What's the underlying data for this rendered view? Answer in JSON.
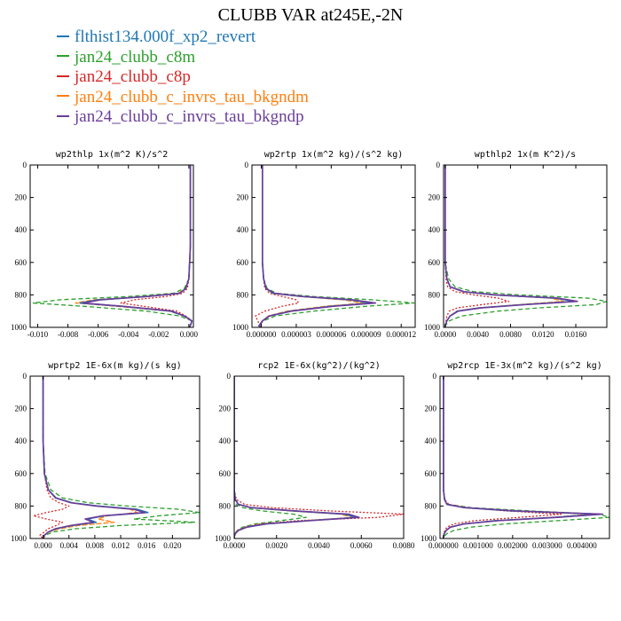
{
  "title": "CLUBB VAR at245E,-2N",
  "legend": [
    {
      "name": "flthist134.000f_xp2_revert",
      "color": "#1f77b4"
    },
    {
      "name": "jan24_clubb_c8m",
      "color": "#2ca02c"
    },
    {
      "name": "jan24_clubb_c8p",
      "color": "#d62728"
    },
    {
      "name": "jan24_clubb_c_invrs_tau_bkgndm",
      "color": "#ff7f0e"
    },
    {
      "name": "jan24_clubb_c_invrs_tau_bkgndp",
      "color": "#6a3d9a"
    }
  ],
  "chart_data": [
    {
      "type": "line",
      "title": "wp2thlp  1x(m^2 K)/s^2",
      "xlim": [
        -0.0105,
        0.0003
      ],
      "ylim": [
        1000,
        0
      ],
      "y_reversed": true,
      "xticks": [
        -0.01,
        -0.008,
        -0.006,
        -0.004,
        -0.002,
        0.0
      ],
      "xtick_labels": [
        "-0.010",
        "-0.008",
        "-0.006",
        "-0.004",
        "-0.002",
        "0.000"
      ],
      "yticks": [
        0,
        200,
        400,
        600,
        800,
        1000
      ],
      "y": [
        0,
        100,
        300,
        500,
        700,
        760,
        790,
        810,
        830,
        850,
        870,
        900,
        930,
        960,
        990,
        1000
      ],
      "series": [
        {
          "name": "flthist134.000f_xp2_revert",
          "x": [
            0.0001,
            0.0001,
            0.0001,
            0.0001,
            0,
            -0.0002,
            -0.0006,
            -0.0028,
            -0.006,
            -0.0072,
            -0.0045,
            -0.0012,
            -0.0003,
            0.0002,
            0.0001,
            0
          ]
        },
        {
          "name": "jan24_clubb_c8m",
          "x": [
            0.0001,
            0.0001,
            0.0001,
            0.0001,
            0,
            -0.0003,
            -0.001,
            -0.004,
            -0.0085,
            -0.0103,
            -0.007,
            -0.0028,
            -0.0006,
            0.0002,
            0.0001,
            0
          ]
        },
        {
          "name": "jan24_clubb_c8p",
          "x": [
            0.0001,
            0.0001,
            0.0001,
            0.0001,
            0,
            -0.0001,
            -0.0004,
            -0.0015,
            -0.0036,
            -0.0045,
            -0.003,
            -0.0008,
            -0.0002,
            0.0002,
            0.0001,
            0
          ]
        },
        {
          "name": "jan24_clubb_c_invrs_tau_bkgndm",
          "x": [
            0.0001,
            0.0001,
            0.0001,
            0.0001,
            0,
            -0.0002,
            -0.0007,
            -0.003,
            -0.0063,
            -0.0075,
            -0.0048,
            -0.0013,
            -0.0003,
            0.0002,
            0.0001,
            0
          ]
        },
        {
          "name": "jan24_clubb_c_invrs_tau_bkgndp",
          "x": [
            0.0001,
            0.0001,
            0.0001,
            0.0001,
            0,
            -0.0002,
            -0.0006,
            -0.0027,
            -0.0058,
            -0.007,
            -0.0044,
            -0.0011,
            -0.0003,
            0.0002,
            0.0001,
            0
          ]
        }
      ]
    },
    {
      "type": "line",
      "title": "wp2rtp  1x(m^2 kg)/(s^2 kg)",
      "xlim": [
        -8e-07,
        1.32e-05
      ],
      "ylim": [
        1000,
        0
      ],
      "y_reversed": true,
      "xticks": [
        0.0,
        3e-06,
        6e-06,
        9e-06,
        1.2e-05
      ],
      "xtick_labels": [
        "0.000000",
        "0.000003",
        "0.000006",
        "0.000009",
        "0.000012"
      ],
      "yticks": [
        0,
        200,
        400,
        600,
        800,
        1000
      ],
      "y": [
        0,
        200,
        400,
        600,
        700,
        760,
        790,
        810,
        830,
        850,
        870,
        900,
        930,
        960,
        990,
        1000
      ],
      "series": [
        {
          "name": "flthist134.000f_xp2_revert",
          "x": [
            1e-07,
            1e-07,
            1e-07,
            1e-07,
            2e-07,
            4e-07,
            1e-06,
            3.5e-06,
            7.5e-06,
            9.5e-06,
            6e-06,
            2.5e-06,
            7e-07,
            1e-07,
            -2e-07,
            0
          ]
        },
        {
          "name": "jan24_clubb_c8m",
          "x": [
            1e-07,
            1e-07,
            1e-07,
            1e-07,
            2e-07,
            5e-07,
            1.3e-06,
            4.5e-06,
            9.5e-06,
            1.31e-05,
            9e-06,
            4.5e-06,
            1.2e-06,
            2e-07,
            -2e-07,
            0
          ]
        },
        {
          "name": "jan24_clubb_c8p",
          "x": [
            1e-07,
            1e-07,
            1e-07,
            1e-07,
            2e-07,
            3e-07,
            7e-07,
            1.8e-06,
            3e-06,
            3.2e-06,
            1.8e-06,
            3e-07,
            -5e-07,
            -3e-07,
            -1e-07,
            0
          ]
        },
        {
          "name": "jan24_clubb_c_invrs_tau_bkgndm",
          "x": [
            1e-07,
            1e-07,
            1e-07,
            1e-07,
            2e-07,
            4e-07,
            1e-06,
            3.3e-06,
            7e-06,
            8.8e-06,
            5.5e-06,
            2.2e-06,
            6e-07,
            1e-07,
            -2e-07,
            0
          ]
        },
        {
          "name": "jan24_clubb_c_invrs_tau_bkgndp",
          "x": [
            1e-07,
            1e-07,
            1e-07,
            1e-07,
            2e-07,
            4e-07,
            1.1e-06,
            3.6e-06,
            7.8e-06,
            9.8e-06,
            6.2e-06,
            2.6e-06,
            7e-07,
            1e-07,
            -2e-07,
            0
          ]
        }
      ]
    },
    {
      "type": "line",
      "title": "wpthlp2  1x(m K^2)/s",
      "xlim": [
        -0.0002,
        0.0198
      ],
      "ylim": [
        1000,
        0
      ],
      "y_reversed": true,
      "xticks": [
        0.0,
        0.004,
        0.008,
        0.012,
        0.016
      ],
      "xtick_labels": [
        "0.0000",
        "0.0040",
        "0.0080",
        "0.0120",
        "0.0160"
      ],
      "yticks": [
        0,
        200,
        400,
        600,
        800,
        1000
      ],
      "y": [
        0,
        200,
        400,
        600,
        700,
        750,
        780,
        800,
        820,
        840,
        860,
        880,
        900,
        930,
        960,
        990,
        1000
      ],
      "series": [
        {
          "name": "flthist134.000f_xp2_revert",
          "x": [
            0,
            0,
            0,
            0,
            0.0002,
            0.0006,
            0.0022,
            0.006,
            0.0135,
            0.0158,
            0.0095,
            0.0042,
            0.0015,
            0.0006,
            0.0002,
            0,
            0
          ]
        },
        {
          "name": "jan24_clubb_c8m",
          "x": [
            0,
            0,
            0,
            0,
            0.0004,
            0.0012,
            0.0035,
            0.009,
            0.0175,
            0.0198,
            0.0185,
            0.0115,
            0.0065,
            0.002,
            0.0005,
            0,
            0
          ]
        },
        {
          "name": "jan24_clubb_c8p",
          "x": [
            0,
            0,
            0,
            0,
            0.0001,
            0.0003,
            0.0012,
            0.0035,
            0.0065,
            0.0078,
            0.0045,
            0.0015,
            0.0005,
            0.0002,
            0.0001,
            0,
            0
          ]
        },
        {
          "name": "jan24_clubb_c_invrs_tau_bkgndm",
          "x": [
            0,
            0,
            0,
            0,
            0.0002,
            0.0006,
            0.0021,
            0.0058,
            0.013,
            0.0145,
            0.009,
            0.004,
            0.0014,
            0.0006,
            0.0002,
            0,
            0
          ]
        },
        {
          "name": "jan24_clubb_c_invrs_tau_bkgndp",
          "x": [
            0,
            0,
            0,
            0,
            0.0002,
            0.0006,
            0.0023,
            0.0062,
            0.0138,
            0.0162,
            0.0098,
            0.0044,
            0.0016,
            0.0006,
            0.0002,
            0,
            0
          ]
        }
      ]
    },
    {
      "type": "line",
      "title": "wprtp2  1E-6x(m kg)/(s kg)",
      "xlim": [
        -0.002,
        0.0242
      ],
      "ylim": [
        1000,
        0
      ],
      "y_reversed": true,
      "xticks": [
        0.0,
        0.004,
        0.008,
        0.012,
        0.016,
        0.02
      ],
      "xtick_labels": [
        "0.000",
        "0.004",
        "0.008",
        "0.012",
        "0.016",
        "0.020"
      ],
      "yticks": [
        0,
        200,
        400,
        600,
        800,
        1000
      ],
      "y": [
        0,
        200,
        400,
        600,
        700,
        750,
        780,
        800,
        820,
        840,
        860,
        880,
        900,
        920,
        940,
        960,
        980,
        1000
      ],
      "series": [
        {
          "name": "flthist134.000f_xp2_revert",
          "x": [
            0,
            0,
            0,
            0.0002,
            0.0008,
            0.002,
            0.0045,
            0.0085,
            0.0145,
            0.0162,
            0.0095,
            0.0068,
            0.0082,
            0.0045,
            0.002,
            0.0008,
            0.0002,
            0
          ]
        },
        {
          "name": "jan24_clubb_c8m",
          "x": [
            0,
            0,
            0,
            0.0003,
            0.0012,
            0.003,
            0.007,
            0.013,
            0.021,
            0.0242,
            0.018,
            0.014,
            0.0235,
            0.012,
            0.005,
            0.0015,
            0.0004,
            0
          ]
        },
        {
          "name": "jan24_clubb_c8p",
          "x": [
            0,
            0,
            0,
            0.0002,
            0.0006,
            0.0012,
            0.0025,
            0.004,
            0.003,
            0.0005,
            -0.0015,
            0.0005,
            0.003,
            0.002,
            0.0008,
            0.0002,
            -0.0005,
            0
          ]
        },
        {
          "name": "jan24_clubb_c_invrs_tau_bkgndm",
          "x": [
            0,
            0,
            0,
            0.0002,
            0.0008,
            0.002,
            0.0045,
            0.0085,
            0.0135,
            0.0145,
            0.01,
            0.0085,
            0.011,
            0.0055,
            0.0025,
            0.0009,
            0.0002,
            0
          ]
        },
        {
          "name": "jan24_clubb_c_invrs_tau_bkgndp",
          "x": [
            0,
            0,
            0,
            0.0002,
            0.0008,
            0.0019,
            0.0043,
            0.0082,
            0.014,
            0.0158,
            0.0092,
            0.0065,
            0.0078,
            0.0042,
            0.0019,
            0.0008,
            0.0002,
            0
          ]
        }
      ]
    },
    {
      "type": "line",
      "title": "rcp2  1E-6x(kg^2)/(kg^2)",
      "xlim": [
        0,
        0.008
      ],
      "ylim": [
        1000,
        0
      ],
      "y_reversed": true,
      "xticks": [
        0.0,
        0.002,
        0.004,
        0.006,
        0.008
      ],
      "xtick_labels": [
        "0.0000",
        "0.0020",
        "0.0040",
        "0.0060",
        "0.0080"
      ],
      "yticks": [
        0,
        200,
        400,
        600,
        800,
        1000
      ],
      "y": [
        0,
        200,
        400,
        600,
        700,
        760,
        790,
        810,
        830,
        850,
        870,
        890,
        910,
        930,
        950,
        970,
        990,
        1000
      ],
      "series": [
        {
          "name": "flthist134.000f_xp2_revert",
          "x": [
            0,
            0,
            0,
            0,
            0,
            5e-05,
            0.0002,
            0.0008,
            0.0028,
            0.0052,
            0.0058,
            0.0035,
            0.0015,
            0.0006,
            0.0002,
            5e-05,
            0,
            0
          ]
        },
        {
          "name": "jan24_clubb_c8m",
          "x": [
            0,
            0,
            0,
            0,
            0,
            3e-05,
            0.0001,
            0.0004,
            0.0013,
            0.0028,
            0.0034,
            0.0022,
            0.001,
            0.0004,
            0.00015,
            3e-05,
            0,
            0
          ]
        },
        {
          "name": "jan24_clubb_c8p",
          "x": [
            0,
            0,
            0,
            0,
            0,
            0.0001,
            0.0005,
            0.0018,
            0.0045,
            0.008,
            0.0068,
            0.003,
            0.0012,
            0.0005,
            0.00015,
            4e-05,
            0,
            0
          ]
        },
        {
          "name": "jan24_clubb_c_invrs_tau_bkgndm",
          "x": [
            0,
            0,
            0,
            0,
            0,
            5e-05,
            0.0002,
            0.0008,
            0.0026,
            0.005,
            0.0056,
            0.0034,
            0.0014,
            0.0006,
            0.0002,
            5e-05,
            0,
            0
          ]
        },
        {
          "name": "jan24_clubb_c_invrs_tau_bkgndp",
          "x": [
            0,
            0,
            0,
            0,
            0,
            5e-05,
            0.0002,
            0.0008,
            0.0029,
            0.0054,
            0.0059,
            0.0036,
            0.0015,
            0.0006,
            0.0002,
            5e-05,
            0,
            0
          ]
        }
      ]
    },
    {
      "type": "line",
      "title": "wp2rcp  1E-3x(m^2 kg)/(s^2 kg)",
      "xlim": [
        -0.0001,
        0.0048
      ],
      "ylim": [
        1000,
        0
      ],
      "y_reversed": true,
      "xticks": [
        0.0,
        0.001,
        0.002,
        0.003,
        0.004
      ],
      "xtick_labels": [
        "0.000000",
        "0.001000",
        "0.002000",
        "0.003000",
        "0.004000"
      ],
      "yticks": [
        0,
        200,
        400,
        600,
        800,
        1000
      ],
      "y": [
        0,
        200,
        400,
        600,
        700,
        760,
        790,
        810,
        830,
        850,
        870,
        890,
        910,
        930,
        950,
        970,
        990,
        1000
      ],
      "series": [
        {
          "name": "flthist134.000f_xp2_revert",
          "x": [
            0,
            0,
            0,
            0,
            0,
            3e-05,
            0.0001,
            0.0006,
            0.002,
            0.0045,
            0.0032,
            0.0015,
            0.0006,
            0.0002,
            8e-05,
            2e-05,
            0,
            0
          ]
        },
        {
          "name": "jan24_clubb_c8m",
          "x": [
            0,
            0,
            0,
            0,
            0,
            4e-05,
            0.00015,
            0.0008,
            0.0025,
            0.0045,
            0.0048,
            0.0033,
            0.0018,
            0.0008,
            0.0003,
            0.0001,
            0,
            0
          ]
        },
        {
          "name": "jan24_clubb_c8p",
          "x": [
            0,
            0,
            0,
            0,
            0,
            4e-05,
            0.00015,
            0.0007,
            0.0018,
            0.0034,
            0.0022,
            0.0009,
            0.0003,
            0.0001,
            4e-05,
            1e-05,
            0,
            0
          ]
        },
        {
          "name": "jan24_clubb_c_invrs_tau_bkgndm",
          "x": [
            0,
            0,
            0,
            0,
            0,
            3e-05,
            0.0001,
            0.0006,
            0.0019,
            0.0043,
            0.0031,
            0.0015,
            0.0006,
            0.0002,
            8e-05,
            2e-05,
            0,
            0
          ]
        },
        {
          "name": "jan24_clubb_c_invrs_tau_bkgndp",
          "x": [
            0,
            0,
            0,
            0,
            0,
            3e-05,
            0.0001,
            0.0006,
            0.0021,
            0.0046,
            0.0033,
            0.0016,
            0.0006,
            0.0002,
            8e-05,
            2e-05,
            0,
            0
          ]
        }
      ]
    }
  ]
}
